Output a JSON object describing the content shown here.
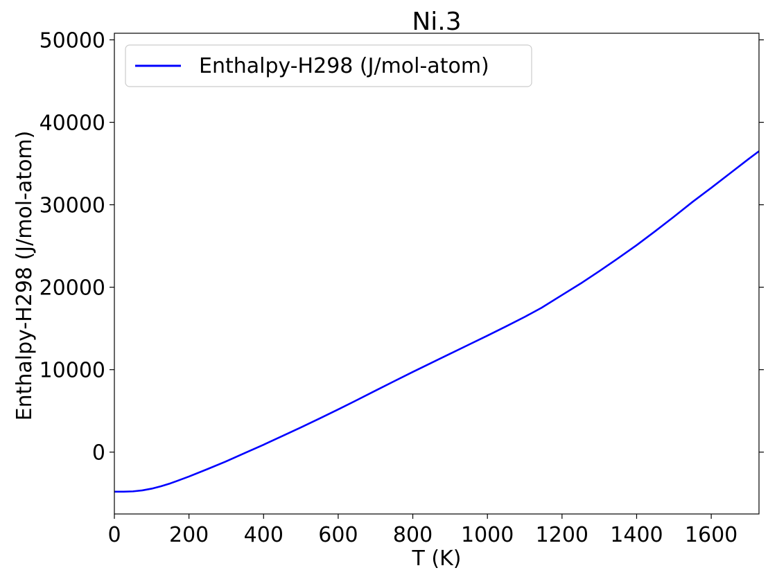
{
  "chart_data": {
    "type": "line",
    "title": "Ni.3",
    "xlabel": "T (K)",
    "ylabel": "Enthalpy-H298 (J/mol-atom)",
    "xlim": [
      0,
      1728
    ],
    "ylim": [
      -7500,
      50800
    ],
    "xticks": [
      0,
      200,
      400,
      600,
      800,
      1000,
      1200,
      1400,
      1600
    ],
    "yticks": [
      0,
      10000,
      20000,
      30000,
      40000,
      50000
    ],
    "grid": false,
    "legend_position": "top-left",
    "series": [
      {
        "name": "Enthalpy-H298 (J/mol-atom)",
        "color": "#0000ff",
        "x": [
          0,
          25,
          50,
          75,
          100,
          125,
          150,
          175,
          200,
          250,
          298,
          350,
          400,
          450,
          500,
          550,
          600,
          650,
          700,
          750,
          800,
          850,
          900,
          950,
          1000,
          1050,
          1100,
          1145,
          1200,
          1250,
          1300,
          1350,
          1400,
          1450,
          1500,
          1550,
          1600,
          1650,
          1700,
          1728
        ],
        "y": [
          -4800,
          -4795,
          -4760,
          -4640,
          -4430,
          -4140,
          -3790,
          -3380,
          -2960,
          -2050,
          -1150,
          -100,
          900,
          1950,
          3000,
          4080,
          5180,
          6310,
          7460,
          8600,
          9730,
          10830,
          11930,
          13030,
          14130,
          15250,
          16400,
          17500,
          19050,
          20450,
          21950,
          23500,
          25100,
          26800,
          28550,
          30350,
          32050,
          33800,
          35550,
          36500
        ]
      }
    ]
  }
}
